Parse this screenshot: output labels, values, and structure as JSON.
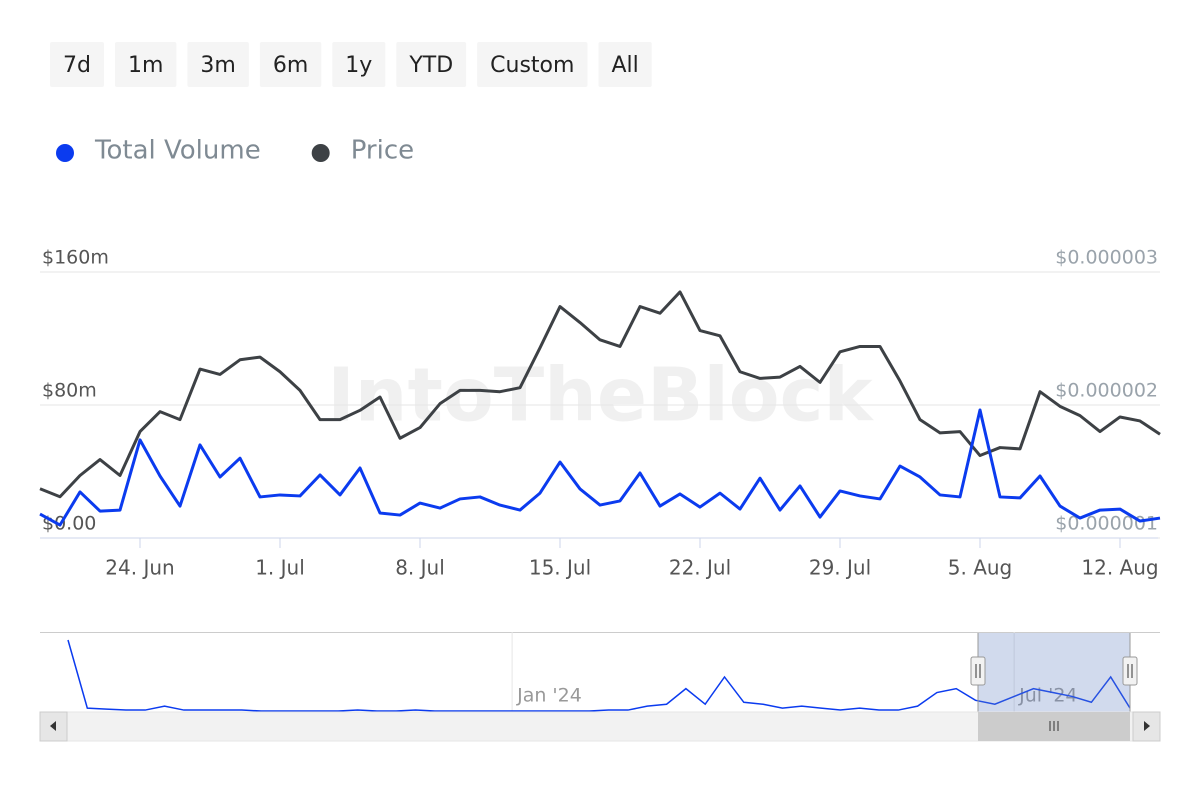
{
  "range_buttons": [
    "7d",
    "1m",
    "3m",
    "6m",
    "1y",
    "YTD",
    "Custom",
    "All"
  ],
  "watermark": "IntoTheBlock",
  "chart_data": [
    {
      "type": "line",
      "x": [
        "Jun 19",
        "Jun 20",
        "Jun 21",
        "Jun 22",
        "Jun 23",
        "Jun 24",
        "Jun 25",
        "Jun 26",
        "Jun 27",
        "Jun 28",
        "Jun 29",
        "Jun 30",
        "Jul 1",
        "Jul 2",
        "Jul 3",
        "Jul 4",
        "Jul 5",
        "Jul 6",
        "Jul 7",
        "Jul 8",
        "Jul 9",
        "Jul 10",
        "Jul 11",
        "Jul 12",
        "Jul 13",
        "Jul 14",
        "Jul 15",
        "Jul 16",
        "Jul 17",
        "Jul 18",
        "Jul 19",
        "Jul 20",
        "Jul 21",
        "Jul 22",
        "Jul 23",
        "Jul 24",
        "Jul 25",
        "Jul 26",
        "Jul 27",
        "Jul 28",
        "Jul 29",
        "Jul 30",
        "Jul 31",
        "Aug 1",
        "Aug 2",
        "Aug 3",
        "Aug 4",
        "Aug 5",
        "Aug 6",
        "Aug 7",
        "Aug 8",
        "Aug 9",
        "Aug 10",
        "Aug 11",
        "Aug 12",
        "Aug 13",
        "Aug 14"
      ],
      "xticks": [
        {
          "value": "Jun 24",
          "label": "24. Jun"
        },
        {
          "value": "Jul 1",
          "label": "1. Jul"
        },
        {
          "value": "Jul 8",
          "label": "8. Jul"
        },
        {
          "value": "Jul 15",
          "label": "15. Jul"
        },
        {
          "value": "Jul 22",
          "label": "22. Jul"
        },
        {
          "value": "Jul 29",
          "label": "29. Jul"
        },
        {
          "value": "Aug 5",
          "label": "5. Aug"
        },
        {
          "value": "Aug 12",
          "label": "12. Aug"
        }
      ],
      "ylim": [
        0,
        160
      ],
      "yticks": [
        {
          "value": 0,
          "label": "$0.00"
        },
        {
          "value": 80,
          "label": "$80m"
        },
        {
          "value": 160,
          "label": "$160m"
        }
      ],
      "y2lim": [
        1e-06,
        3e-06
      ],
      "y2ticks": [
        {
          "value": 1e-06,
          "label": "$0.000001"
        },
        {
          "value": 2e-06,
          "label": "$0.000002"
        },
        {
          "value": 3e-06,
          "label": "$0.000003"
        }
      ],
      "grid": true,
      "series": [
        {
          "name": "Total Volume",
          "color": "#0b3bef",
          "values": [
            14.4,
            7.8,
            27.7,
            16.2,
            16.8,
            59,
            37.3,
            19.2,
            56,
            36.7,
            48,
            24.7,
            25.9,
            25.3,
            37.9,
            25.9,
            42.1,
            15,
            13.8,
            21,
            18,
            23.5,
            24.7,
            19.8,
            16.8,
            27,
            45.7,
            29.5,
            19.8,
            22.3,
            39.1,
            19.2,
            26.5,
            18.6,
            27,
            17.4,
            36,
            16.8,
            31.3,
            12.6,
            28.3,
            25.3,
            23.5,
            43.3,
            36.7,
            25.9,
            24.7,
            77,
            24.7,
            24.1,
            37.3,
            19.2,
            12,
            16.8,
            17.4,
            10.2,
            12
          ]
        },
        {
          "name": "Price",
          "color": "#3d4145",
          "axis": "y2",
          "values": [
            1.37e-06,
            1.31e-06,
            1.47e-06,
            1.59e-06,
            1.47e-06,
            1.8e-06,
            1.95e-06,
            1.89e-06,
            2.27e-06,
            2.23e-06,
            2.34e-06,
            2.36e-06,
            2.25e-06,
            2.11e-06,
            1.89e-06,
            1.89e-06,
            1.96e-06,
            2.06e-06,
            1.75e-06,
            1.83e-06,
            2.01e-06,
            2.11e-06,
            2.11e-06,
            2.1e-06,
            2.13e-06,
            2.43e-06,
            2.74e-06,
            2.62e-06,
            2.49e-06,
            2.44e-06,
            2.74e-06,
            2.69e-06,
            2.85e-06,
            2.56e-06,
            2.52e-06,
            2.25e-06,
            2.2e-06,
            2.21e-06,
            2.29e-06,
            2.17e-06,
            2.4e-06,
            2.44e-06,
            2.44e-06,
            2.18e-06,
            1.89e-06,
            1.79e-06,
            1.8e-06,
            1.62e-06,
            1.68e-06,
            1.67e-06,
            2.1e-06,
            1.99e-06,
            1.92e-06,
            1.8e-06,
            1.91e-06,
            1.88e-06,
            1.78e-06
          ]
        }
      ]
    },
    {
      "type": "line",
      "categories": [
        null,
        null,
        null,
        null,
        null,
        null,
        null,
        null,
        null,
        null,
        null,
        null,
        null,
        null,
        null,
        null,
        null,
        null,
        null,
        null,
        null,
        null,
        null,
        "Jan '24",
        null,
        null,
        null,
        null,
        null,
        null,
        null,
        null,
        null,
        null,
        null,
        null,
        null,
        null,
        null,
        null,
        null,
        null,
        null,
        null,
        null,
        null,
        null,
        null,
        null,
        "Jul '24",
        null,
        null,
        null,
        null,
        null,
        null
      ],
      "color": "#0b3bef",
      "values": [
        37,
        2,
        1.5,
        1,
        1,
        3,
        1,
        1,
        1,
        1,
        0.5,
        0.5,
        0.5,
        0.5,
        0.5,
        1,
        0.5,
        0.5,
        1,
        0.5,
        0.5,
        0.5,
        0.5,
        0.5,
        0.5,
        0.5,
        0.5,
        0.5,
        1,
        1,
        3,
        4,
        12,
        4,
        18,
        5,
        4,
        2,
        3,
        2,
        1,
        2,
        1,
        1,
        3,
        10,
        12,
        6,
        4,
        8,
        12,
        10,
        8,
        5,
        18,
        2
      ]
    }
  ]
}
